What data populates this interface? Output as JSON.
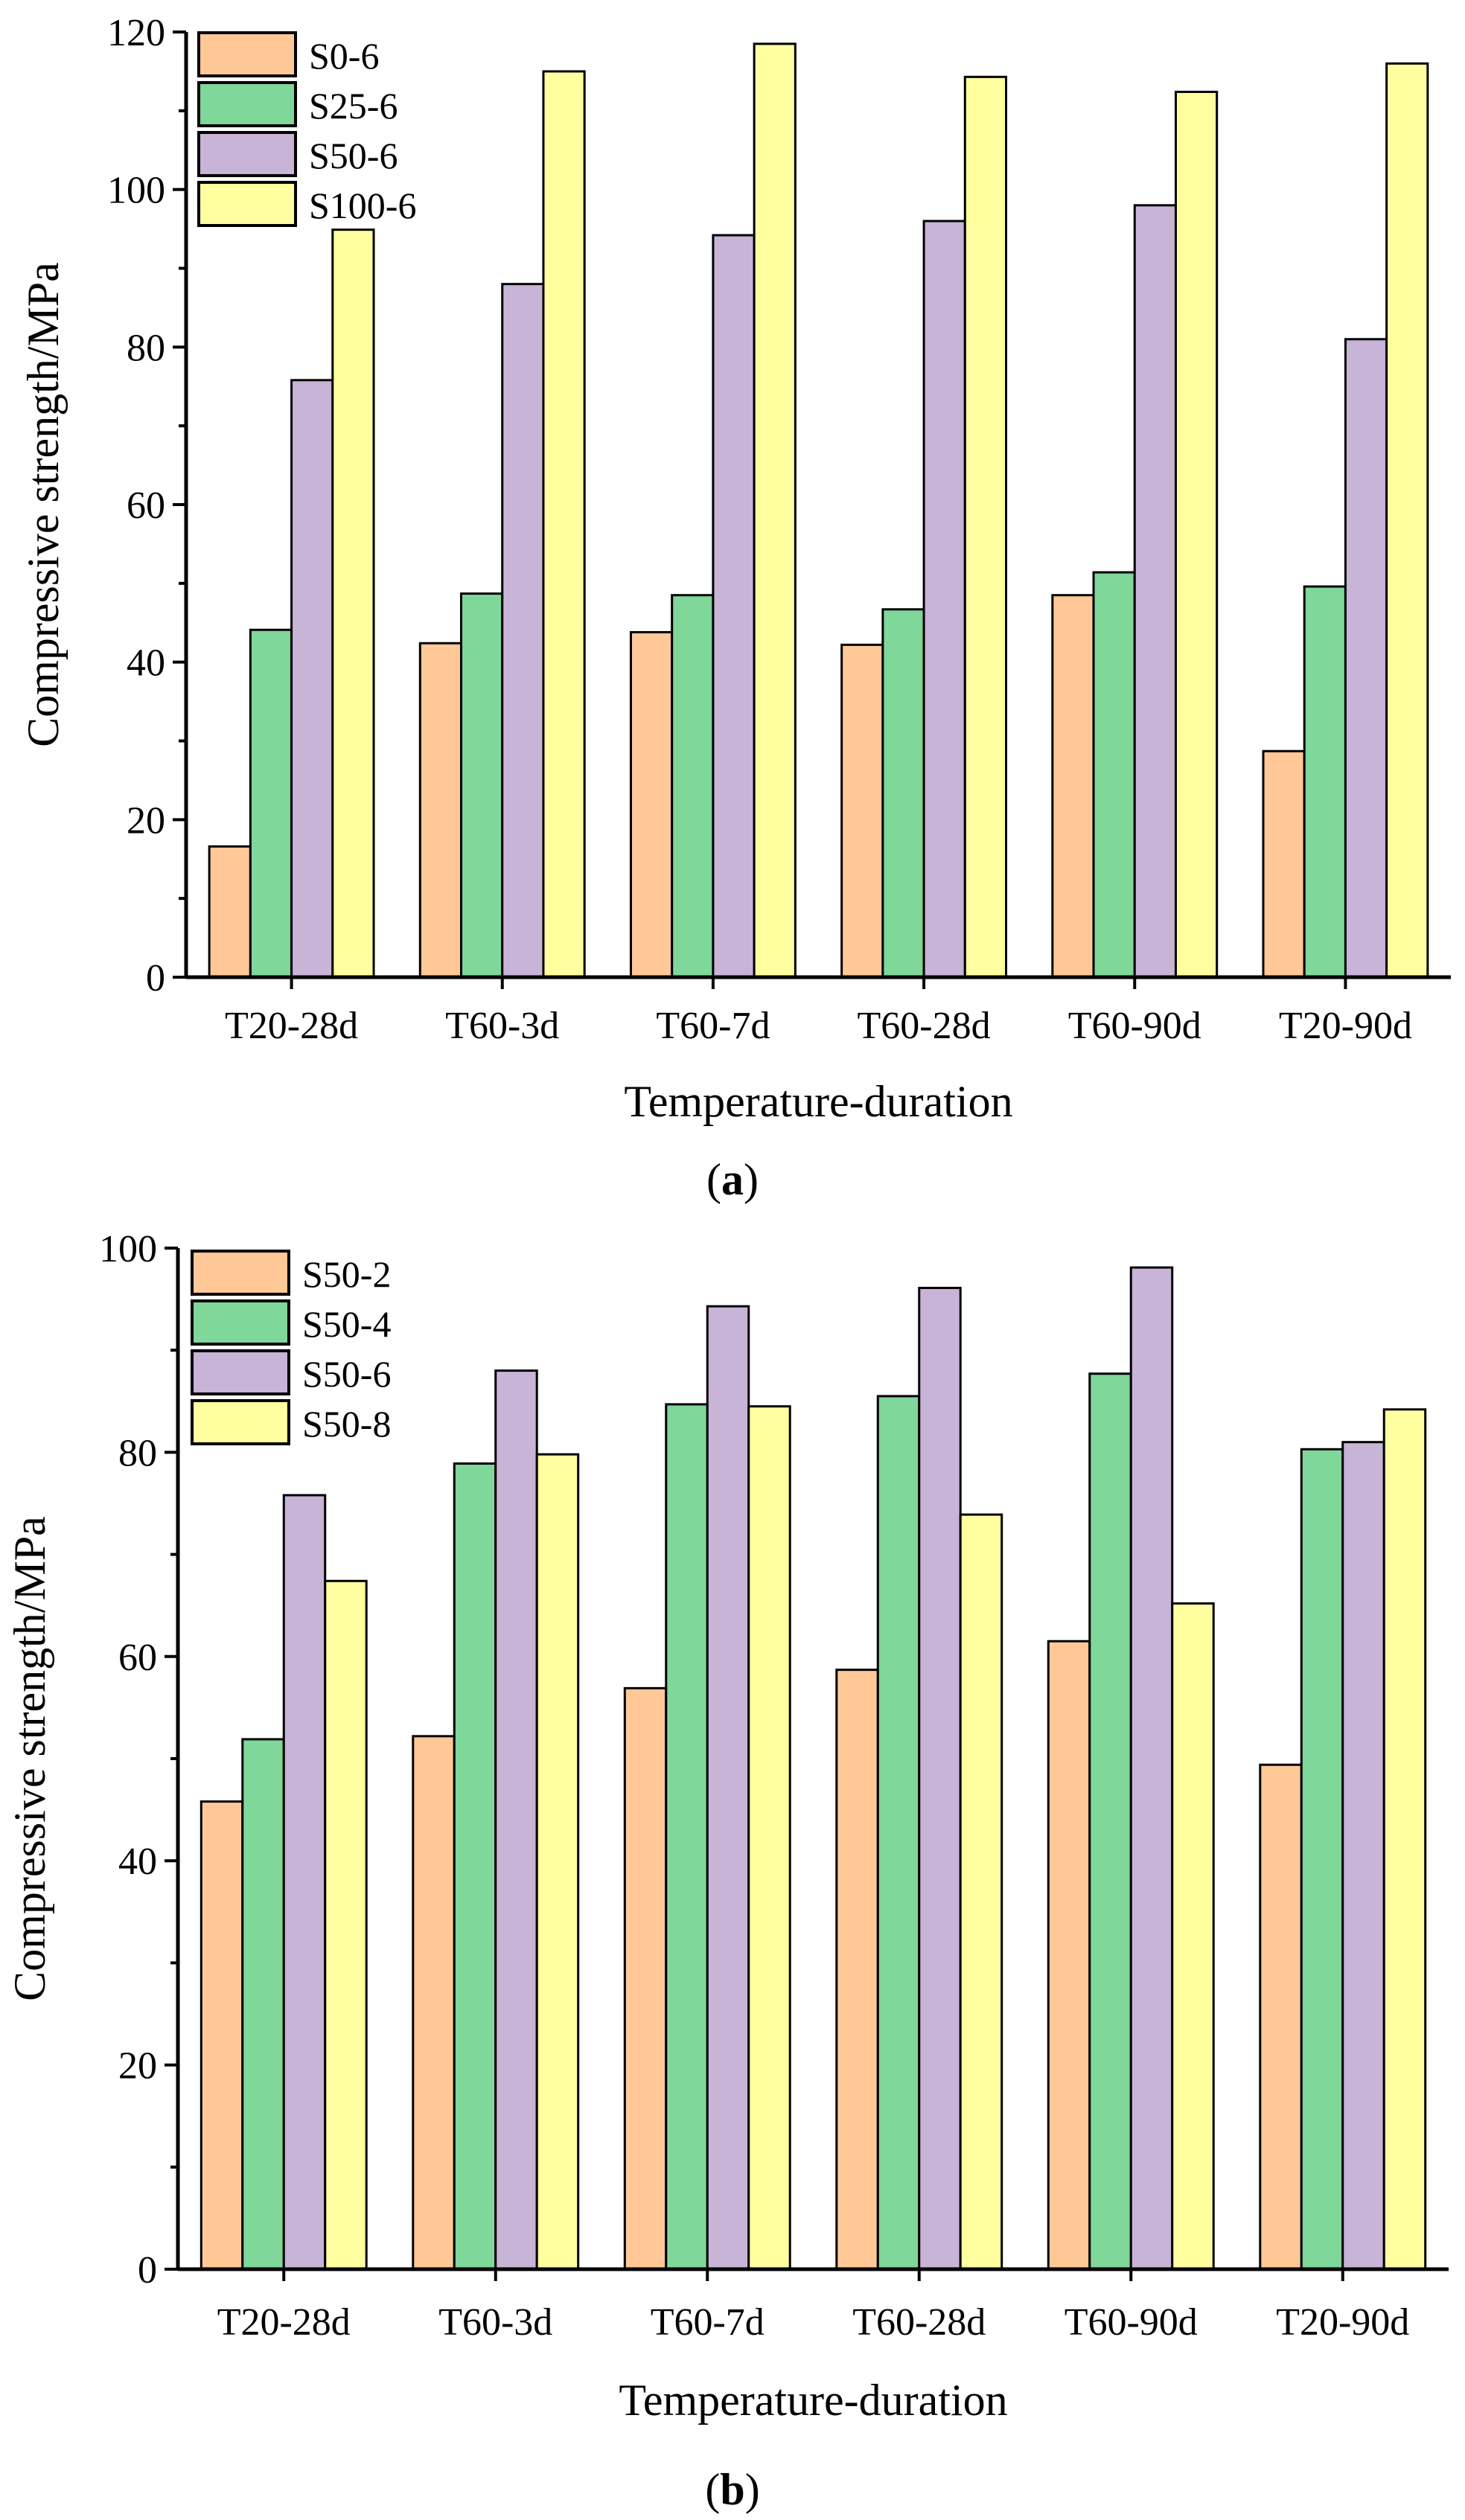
{
  "colors": [
    "#FFC896",
    "#7FD79A",
    "#C8B4D7",
    "#FFFFA0"
  ],
  "chart_data": [
    {
      "type": "bar",
      "panel_label": "a",
      "title": "",
      "xlabel": "Temperature-duration",
      "ylabel": "Compressive strength/MPa",
      "ylim": [
        0,
        120
      ],
      "yticks": [
        0,
        20,
        40,
        60,
        80,
        100,
        120
      ],
      "categories": [
        "T20-28d",
        "T60-3d",
        "T60-7d",
        "T60-28d",
        "T60-90d",
        "T20-90d"
      ],
      "legend_position": "top-left",
      "series": [
        {
          "name": "S0-6",
          "values": [
            16.6,
            42.4,
            43.8,
            42.2,
            48.5,
            28.7
          ]
        },
        {
          "name": "S25-6",
          "values": [
            44.1,
            48.7,
            48.5,
            46.7,
            51.4,
            49.6
          ]
        },
        {
          "name": "S50-6",
          "values": [
            75.8,
            88.0,
            94.2,
            96.0,
            98.0,
            81.0
          ]
        },
        {
          "name": "S100-6",
          "values": [
            94.9,
            115.0,
            118.5,
            114.3,
            112.4,
            116.0
          ]
        }
      ]
    },
    {
      "type": "bar",
      "panel_label": "b",
      "title": "",
      "xlabel": "Temperature-duration",
      "ylabel": "Compressive strength/MPa",
      "ylim": [
        0,
        100
      ],
      "yticks": [
        0,
        20,
        40,
        60,
        80,
        100
      ],
      "categories": [
        "T20-28d",
        "T60-3d",
        "T60-7d",
        "T60-28d",
        "T60-90d",
        "T20-90d"
      ],
      "legend_position": "top-left",
      "series": [
        {
          "name": "S50-2",
          "values": [
            45.8,
            52.2,
            56.9,
            58.7,
            61.5,
            49.4
          ]
        },
        {
          "name": "S50-4",
          "values": [
            51.9,
            78.9,
            84.7,
            85.5,
            87.7,
            80.3
          ]
        },
        {
          "name": "S50-6",
          "values": [
            75.8,
            88.0,
            94.3,
            96.1,
            98.1,
            81.0
          ]
        },
        {
          "name": "S50-8",
          "values": [
            67.4,
            79.8,
            84.5,
            73.9,
            65.2,
            84.2
          ]
        }
      ]
    }
  ]
}
